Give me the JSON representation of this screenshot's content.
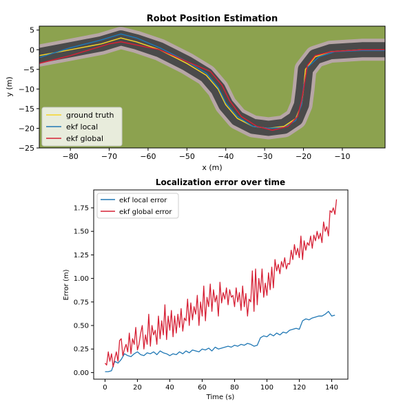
{
  "chart_data": [
    {
      "type": "line",
      "title": "Robot Position Estimation",
      "xlabel": "x (m)",
      "ylabel": "y (m)",
      "xlim": [
        -88,
        1
      ],
      "ylim": [
        -25,
        6
      ],
      "xticks": [
        -80,
        -70,
        -60,
        -50,
        -40,
        -30,
        -20,
        -10
      ],
      "yticks": [
        5,
        0,
        -5,
        -10,
        -15,
        -20,
        -25
      ],
      "xtick_labels": [
        "−80",
        "−70",
        "−60",
        "−50",
        "−40",
        "−30",
        "−20",
        "−10"
      ],
      "ytick_labels": [
        "5",
        "0",
        "−5",
        "−10",
        "−15",
        "−20",
        "−25"
      ],
      "background_color": "#8ca24f",
      "road_color": "#4a4a4a",
      "road_edge_color": "#b7a6a6",
      "grid": false,
      "legend_position": "lower-left",
      "series": [
        {
          "name": "ground truth",
          "color": "#f5d327",
          "points": [
            [
              -88,
              -1.5
            ],
            [
              -80,
              0
            ],
            [
              -72,
              1.5
            ],
            [
              -67,
              3
            ],
            [
              -63,
              2
            ],
            [
              -57,
              0
            ],
            [
              -50,
              -3.5
            ],
            [
              -45,
              -6.5
            ],
            [
              -42,
              -10
            ],
            [
              -40,
              -14
            ],
            [
              -37,
              -17.5
            ],
            [
              -33,
              -19.5
            ],
            [
              -29,
              -20
            ],
            [
              -25,
              -19.5
            ],
            [
              -22,
              -17.5
            ],
            [
              -20.5,
              -14
            ],
            [
              -20,
              -10
            ],
            [
              -19.5,
              -5
            ],
            [
              -17,
              -1.8
            ],
            [
              -13,
              -0.5
            ],
            [
              -5,
              0
            ],
            [
              1,
              0
            ]
          ]
        },
        {
          "name": "ekf local",
          "color": "#1f77b4",
          "points": [
            [
              -88,
              -2
            ],
            [
              -80,
              0.5
            ],
            [
              -72,
              2.5
            ],
            [
              -67,
              4
            ],
            [
              -63,
              3
            ],
            [
              -57,
              0.5
            ],
            [
              -50,
              -3
            ],
            [
              -45,
              -6
            ],
            [
              -42,
              -9.5
            ],
            [
              -40,
              -13.5
            ],
            [
              -37,
              -17
            ],
            [
              -33,
              -19.5
            ],
            [
              -29,
              -20
            ],
            [
              -25,
              -19.8
            ],
            [
              -22,
              -18
            ],
            [
              -20.5,
              -14
            ],
            [
              -20,
              -9.5
            ],
            [
              -19,
              -4.5
            ],
            [
              -16,
              -1.8
            ],
            [
              -12,
              -0.5
            ],
            [
              -5,
              -0.2
            ],
            [
              1,
              -0.2
            ]
          ]
        },
        {
          "name": "ekf global",
          "color": "#d62035",
          "points": [
            [
              -88,
              -3.5
            ],
            [
              -84,
              -2.5
            ],
            [
              -80,
              -1.5
            ],
            [
              -75,
              0
            ],
            [
              -70,
              1.5
            ],
            [
              -67,
              2
            ],
            [
              -62,
              1
            ],
            [
              -57,
              0
            ],
            [
              -50,
              -3
            ],
            [
              -44,
              -5.5
            ],
            [
              -41,
              -9
            ],
            [
              -39,
              -13
            ],
            [
              -36,
              -17
            ],
            [
              -32,
              -19.5
            ],
            [
              -28,
              -20.5
            ],
            [
              -24,
              -19.5
            ],
            [
              -21.5,
              -17
            ],
            [
              -20.5,
              -13
            ],
            [
              -19.8,
              -9
            ],
            [
              -19,
              -4
            ],
            [
              -17,
              -1.5
            ],
            [
              -13,
              -0.5
            ],
            [
              -5,
              0
            ],
            [
              1,
              0
            ]
          ]
        }
      ]
    },
    {
      "type": "line",
      "title": "Localization error over time",
      "xlabel": "Time (s)",
      "ylabel": "Error (m)",
      "xlim": [
        -7,
        150
      ],
      "ylim": [
        -0.07,
        1.94
      ],
      "xticks": [
        0,
        20,
        40,
        60,
        80,
        100,
        120,
        140
      ],
      "yticks": [
        0,
        0.25,
        0.5,
        0.75,
        1.0,
        1.25,
        1.5,
        1.75
      ],
      "xtick_labels": [
        "0",
        "20",
        "40",
        "60",
        "80",
        "100",
        "120",
        "140"
      ],
      "ytick_labels": [
        "0.00",
        "0.25",
        "0.50",
        "0.75",
        "1.00",
        "1.25",
        "1.50",
        "1.75"
      ],
      "grid": false,
      "legend_position": "upper-left",
      "series": [
        {
          "name": "ekf local error",
          "color": "#1f77b4",
          "x": [
            0,
            2,
            4,
            6,
            8,
            10,
            12,
            14,
            16,
            18,
            20,
            22,
            24,
            26,
            28,
            30,
            32,
            34,
            36,
            38,
            40,
            42,
            44,
            46,
            48,
            50,
            52,
            54,
            56,
            58,
            60,
            62,
            64,
            66,
            68,
            70,
            72,
            74,
            76,
            78,
            80,
            82,
            84,
            86,
            88,
            90,
            92,
            94,
            96,
            98,
            100,
            102,
            104,
            106,
            108,
            110,
            112,
            114,
            116,
            118,
            120,
            122,
            124,
            126,
            128,
            130,
            132,
            134,
            136,
            138,
            140,
            142
          ],
          "y": [
            0.01,
            0.01,
            0.02,
            0.12,
            0.1,
            0.14,
            0.2,
            0.18,
            0.17,
            0.2,
            0.22,
            0.19,
            0.18,
            0.21,
            0.2,
            0.22,
            0.19,
            0.23,
            0.21,
            0.2,
            0.18,
            0.2,
            0.19,
            0.22,
            0.2,
            0.23,
            0.21,
            0.24,
            0.23,
            0.22,
            0.25,
            0.24,
            0.26,
            0.23,
            0.27,
            0.25,
            0.26,
            0.27,
            0.28,
            0.27,
            0.29,
            0.28,
            0.3,
            0.29,
            0.31,
            0.3,
            0.28,
            0.29,
            0.37,
            0.39,
            0.38,
            0.41,
            0.39,
            0.42,
            0.4,
            0.43,
            0.42,
            0.45,
            0.46,
            0.47,
            0.46,
            0.55,
            0.57,
            0.56,
            0.58,
            0.59,
            0.6,
            0.6,
            0.62,
            0.65,
            0.6,
            0.61
          ]
        },
        {
          "name": "ekf global error",
          "color": "#d62035",
          "x": [
            0,
            1,
            2,
            3,
            4,
            5,
            6,
            7,
            8,
            9,
            10,
            11,
            12,
            13,
            14,
            15,
            16,
            17,
            18,
            19,
            20,
            21,
            22,
            23,
            24,
            25,
            26,
            27,
            28,
            29,
            30,
            31,
            32,
            33,
            34,
            35,
            36,
            37,
            38,
            39,
            40,
            41,
            42,
            43,
            44,
            45,
            46,
            47,
            48,
            49,
            50,
            51,
            52,
            53,
            54,
            55,
            56,
            57,
            58,
            59,
            60,
            61,
            62,
            63,
            64,
            65,
            66,
            67,
            68,
            69,
            70,
            71,
            72,
            73,
            74,
            75,
            76,
            77,
            78,
            79,
            80,
            81,
            82,
            83,
            84,
            85,
            86,
            87,
            88,
            89,
            90,
            91,
            92,
            93,
            94,
            95,
            96,
            97,
            98,
            99,
            100,
            101,
            102,
            103,
            104,
            105,
            106,
            107,
            108,
            109,
            110,
            111,
            112,
            113,
            114,
            115,
            116,
            117,
            118,
            119,
            120,
            121,
            122,
            123,
            124,
            125,
            126,
            127,
            128,
            129,
            130,
            131,
            132,
            133,
            134,
            135,
            136,
            137,
            138,
            139,
            140,
            141,
            142,
            143
          ],
          "y": [
            0.1,
            0.08,
            0.22,
            0.12,
            0.2,
            0.06,
            0.15,
            0.22,
            0.12,
            0.34,
            0.36,
            0.18,
            0.25,
            0.3,
            0.22,
            0.42,
            0.2,
            0.36,
            0.3,
            0.48,
            0.24,
            0.3,
            0.42,
            0.5,
            0.25,
            0.4,
            0.3,
            0.62,
            0.28,
            0.5,
            0.4,
            0.45,
            0.3,
            0.6,
            0.36,
            0.55,
            0.4,
            0.72,
            0.35,
            0.6,
            0.45,
            0.66,
            0.38,
            0.6,
            0.42,
            0.62,
            0.48,
            0.68,
            0.44,
            0.58,
            0.55,
            0.78,
            0.5,
            0.74,
            0.56,
            0.7,
            0.62,
            0.82,
            0.5,
            0.75,
            0.6,
            0.92,
            0.55,
            0.8,
            0.7,
            0.94,
            0.65,
            0.88,
            0.75,
            0.82,
            0.6,
            0.96,
            0.74,
            0.85,
            0.78,
            0.9,
            0.72,
            0.88,
            0.8,
            0.82,
            0.7,
            0.9,
            0.75,
            0.85,
            0.66,
            0.92,
            0.7,
            0.84,
            0.6,
            0.78,
            0.75,
            1.08,
            0.65,
            1.1,
            0.72,
            1.0,
            0.85,
            1.1,
            0.8,
            0.95,
            0.82,
            1.06,
            0.88,
            1.12,
            0.9,
            1.2,
            1.08,
            1.15,
            1.05,
            1.18,
            1.12,
            1.22,
            1.1,
            1.16,
            1.15,
            1.3,
            1.2,
            1.36,
            1.25,
            1.32,
            1.22,
            1.45,
            1.2,
            1.4,
            1.3,
            1.38,
            1.35,
            1.45,
            1.32,
            1.46,
            1.4,
            1.5,
            1.42,
            1.48,
            1.38,
            1.6,
            1.5,
            1.55,
            1.45,
            1.72,
            1.7,
            1.75,
            1.68,
            1.84
          ]
        }
      ]
    }
  ]
}
